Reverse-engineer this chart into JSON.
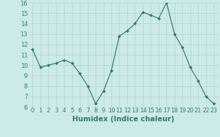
{
  "x": [
    0,
    1,
    2,
    3,
    4,
    5,
    6,
    7,
    8,
    9,
    10,
    11,
    12,
    13,
    14,
    15,
    16,
    17,
    18,
    19,
    20,
    21,
    22,
    23
  ],
  "y": [
    11.5,
    9.8,
    10.0,
    10.2,
    10.5,
    10.2,
    9.2,
    8.0,
    6.3,
    7.5,
    9.5,
    12.8,
    13.3,
    14.0,
    15.1,
    14.8,
    14.5,
    16.0,
    13.0,
    11.7,
    9.8,
    8.5,
    7.0,
    6.3
  ],
  "xlabel": "Humidex (Indice chaleur)",
  "xlim": [
    -0.5,
    23.5
  ],
  "ylim": [
    6,
    16
  ],
  "yticks": [
    6,
    7,
    8,
    9,
    10,
    11,
    12,
    13,
    14,
    15,
    16
  ],
  "xticks": [
    0,
    1,
    2,
    3,
    4,
    5,
    6,
    7,
    8,
    9,
    10,
    11,
    12,
    13,
    14,
    15,
    16,
    17,
    18,
    19,
    20,
    21,
    22,
    23
  ],
  "line_color": "#2a7d6f",
  "bg_color": "#cceae7",
  "grid_color": "#aed4d0",
  "xlabel_fontsize": 7.5,
  "tick_fontsize": 6.0
}
